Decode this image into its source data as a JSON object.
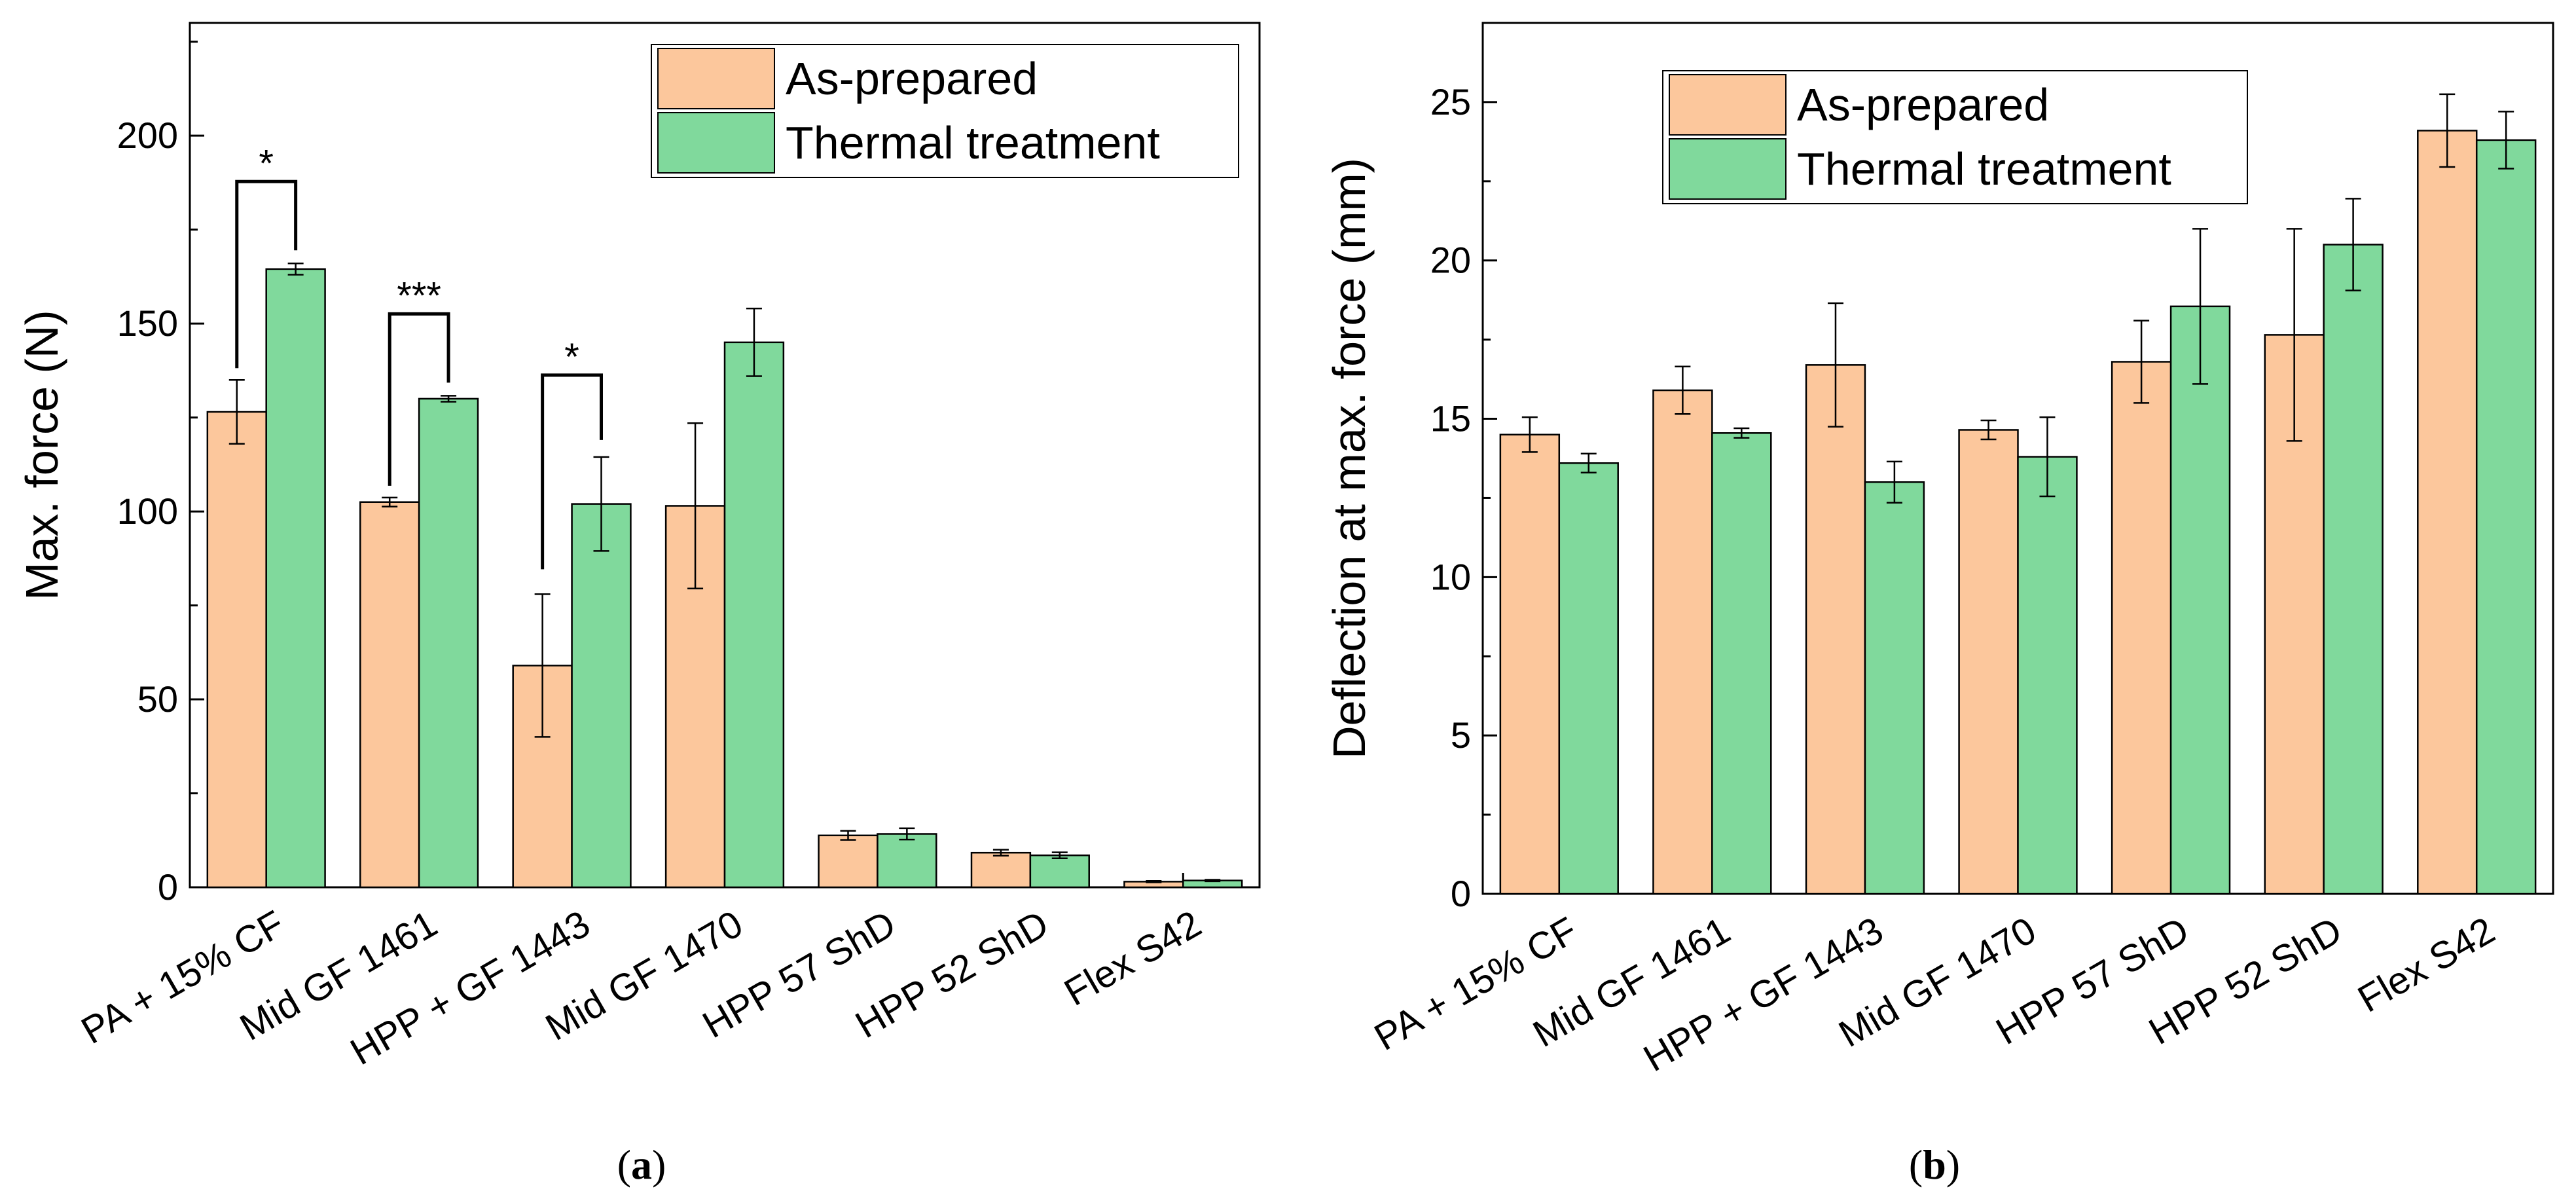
{
  "colors": {
    "as_prepared": "#fcc79c",
    "thermal": "#80d99c",
    "axis": "#000000"
  },
  "chart_data": [
    {
      "id": "a",
      "caption_letter": "a",
      "type": "bar",
      "ylabel": "Max. force (N)",
      "xlabel": "",
      "ylim": [
        0,
        230
      ],
      "yticks": [
        0,
        50,
        100,
        150,
        200
      ],
      "legend": {
        "position": "top-right",
        "entries": [
          "As-prepared",
          "Thermal treatment"
        ]
      },
      "categories": [
        "PA + 15% CF",
        "Mid GF 1461",
        "HPP + GF 1443",
        "Mid GF 1470",
        "HPP 57 ShD",
        "HPP 52 ShD",
        "Flex S42"
      ],
      "series": [
        {
          "name": "As-prepared",
          "values": [
            126.5,
            102.5,
            59,
            101.5,
            13.8,
            9.2,
            1.5
          ],
          "errors": [
            8.5,
            1.2,
            19,
            22,
            1.2,
            0.8,
            0.2
          ]
        },
        {
          "name": "Thermal treatment",
          "values": [
            164.5,
            130,
            102,
            145,
            14.2,
            8.5,
            1.8
          ],
          "errors": [
            1.5,
            0.8,
            12.5,
            9,
            1.5,
            0.8,
            0.2
          ]
        }
      ],
      "significance": [
        {
          "category": 0,
          "label": "*"
        },
        {
          "category": 1,
          "label": "***"
        },
        {
          "category": 2,
          "label": "*"
        }
      ]
    },
    {
      "id": "b",
      "caption_letter": "b",
      "type": "bar",
      "ylabel": "Deflection at max. force (mm)",
      "xlabel": "",
      "ylim": [
        0,
        27.5
      ],
      "yticks": [
        0,
        5,
        10,
        15,
        20,
        25
      ],
      "legend": {
        "position": "top-center",
        "entries": [
          "As-prepared",
          "Thermal treatment"
        ]
      },
      "categories": [
        "PA + 15% CF",
        "Mid GF 1461",
        "HPP + GF 1443",
        "Mid GF 1470",
        "HPP 57 ShD",
        "HPP 52 ShD",
        "Flex S42"
      ],
      "series": [
        {
          "name": "As-prepared",
          "values": [
            14.5,
            15.9,
            16.7,
            14.65,
            16.8,
            17.65,
            24.1
          ],
          "errors": [
            0.55,
            0.75,
            1.95,
            0.3,
            1.3,
            3.35,
            1.15
          ]
        },
        {
          "name": "Thermal treatment",
          "values": [
            13.6,
            14.55,
            13.0,
            13.8,
            18.55,
            20.5,
            23.8
          ],
          "errors": [
            0.3,
            0.15,
            0.65,
            1.25,
            2.45,
            1.45,
            0.9
          ]
        }
      ],
      "significance": []
    }
  ]
}
